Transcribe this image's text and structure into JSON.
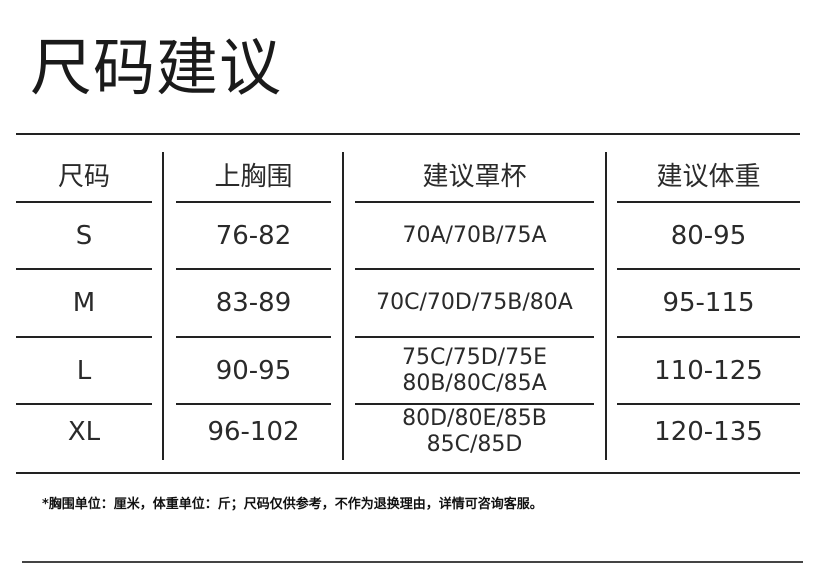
{
  "title": "尺码建议",
  "table": {
    "headers": [
      "尺码",
      "上胸围",
      "建议罩杯",
      "建议体重"
    ],
    "rows": [
      {
        "size": "S",
        "bust": "76-82",
        "cup": [
          "70A/70B/75A"
        ],
        "weight": "80-95"
      },
      {
        "size": "M",
        "bust": "83-89",
        "cup": [
          "70C/70D/75B/80A"
        ],
        "weight": "95-115"
      },
      {
        "size": "L",
        "bust": "90-95",
        "cup": [
          "75C/75D/75E",
          "80B/80C/85A"
        ],
        "weight": "110-125"
      },
      {
        "size": "XL",
        "bust": "96-102",
        "cup": [
          "80D/80E/85B",
          "85C/85D"
        ],
        "weight": "120-135"
      }
    ]
  },
  "note": "*胸围单位：厘米，体重单位：斤；尺码仅供参考，不作为退换理由，详情可咨询客服。"
}
